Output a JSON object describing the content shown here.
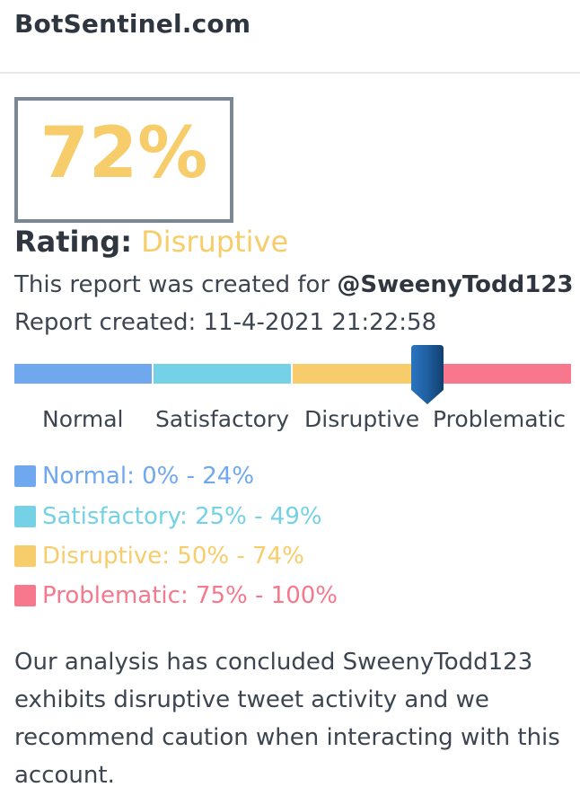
{
  "header": {
    "brand": "BotSentinel.com"
  },
  "score": {
    "value": "72%",
    "color": "#f6cd6a"
  },
  "rating": {
    "label": "Rating:",
    "value": "Disruptive"
  },
  "report": {
    "created_for_prefix": "This report was created for",
    "handle": "@SweenyTodd123",
    "created_label": "Report created: 11-4-2021 21:22:58"
  },
  "scale": {
    "segments": [
      {
        "name": "Normal",
        "color": "#6fa8ee"
      },
      {
        "name": "Satisfactory",
        "color": "#74d1e6"
      },
      {
        "name": "Disruptive",
        "color": "#f6cd6a"
      },
      {
        "name": "Problematic",
        "color": "#f7778d"
      }
    ],
    "marker_value_percent": 72,
    "marker_color": "#1f5fa0"
  },
  "legend": [
    {
      "text": "Normal: 0% - 24%",
      "color": "#6fa8ee"
    },
    {
      "text": "Satisfactory: 25% - 49%",
      "color": "#74d1e6"
    },
    {
      "text": "Disruptive: 50% - 74%",
      "color": "#f6cd6a"
    },
    {
      "text": "Problematic: 75% - 100%",
      "color": "#f7778d"
    }
  ],
  "summary": "Our analysis has concluded SweenyTodd123 exhibits disruptive tweet activity and we recommend caution when interacting with this account."
}
